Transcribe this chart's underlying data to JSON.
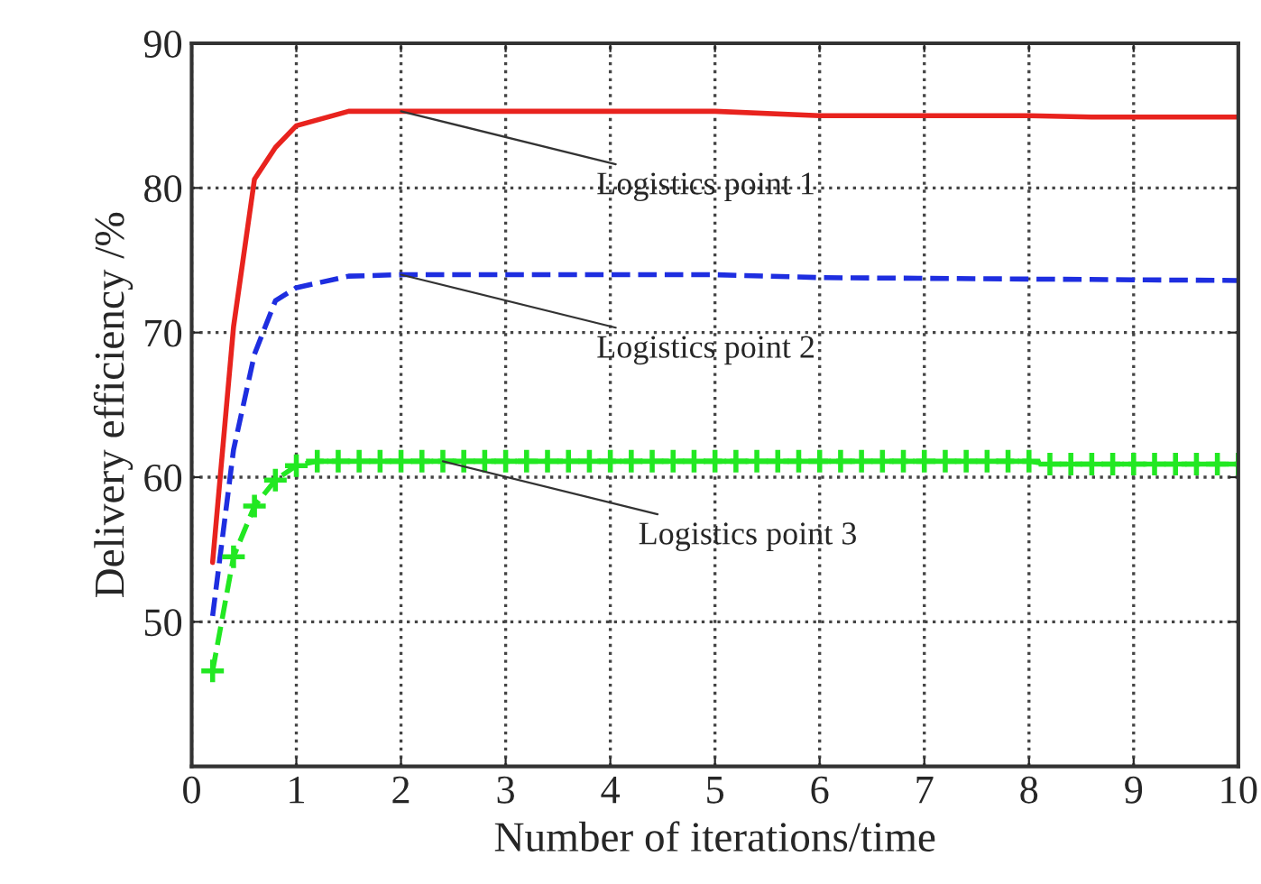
{
  "chart_data": {
    "type": "line",
    "xlabel": "Number of iterations/time",
    "ylabel": "Delivery efficiency /%",
    "xlim": [
      0,
      10
    ],
    "xticks": [
      0,
      1,
      2,
      3,
      4,
      5,
      6,
      7,
      8,
      9,
      10
    ],
    "ylim": [
      40,
      90
    ],
    "yticks": [
      50,
      60,
      70,
      80,
      90
    ],
    "grid": true,
    "series": [
      {
        "name": "Logistics point 1",
        "color": "#e8231e",
        "line_style": "solid",
        "marker": "none",
        "x": [
          0.2,
          0.4,
          0.6,
          0.8,
          1.0,
          1.5,
          2,
          5,
          6,
          8,
          8.6,
          10
        ],
        "values": [
          54.1,
          70.4,
          80.6,
          82.8,
          84.3,
          85.3,
          85.3,
          85.3,
          85.0,
          85.0,
          84.9,
          84.9
        ]
      },
      {
        "name": "Logistics point 2",
        "color": "#1e2ee0",
        "line_style": "dashed",
        "marker": "none",
        "x": [
          0.2,
          0.4,
          0.6,
          0.8,
          1.0,
          1.5,
          2,
          5,
          6,
          10
        ],
        "values": [
          50.4,
          61.9,
          68.5,
          72.2,
          73.1,
          73.9,
          74.0,
          74.0,
          73.8,
          73.6
        ]
      },
      {
        "name": "Logistics point 3",
        "color": "#22e822",
        "line_style": "dashed",
        "marker": "cross",
        "x": [
          0.2,
          0.4,
          0.6,
          0.8,
          1.0,
          1.2,
          1.4,
          1.6,
          1.8,
          2.0,
          2.2,
          2.4,
          2.6,
          2.8,
          3.0,
          3.2,
          3.4,
          3.6,
          3.8,
          4.0,
          4.2,
          4.4,
          4.6,
          4.8,
          5.0,
          5.2,
          5.4,
          5.6,
          5.8,
          6.0,
          6.2,
          6.4,
          6.6,
          6.8,
          7.0,
          7.2,
          7.4,
          7.6,
          7.8,
          8.0,
          8.2,
          8.4,
          8.6,
          8.8,
          9.0,
          9.2,
          9.4,
          9.6,
          9.8,
          10.0
        ],
        "values": [
          46.6,
          54.5,
          58.0,
          59.8,
          60.8,
          61.1,
          61.1,
          61.1,
          61.1,
          61.1,
          61.1,
          61.1,
          61.1,
          61.1,
          61.1,
          61.1,
          61.1,
          61.1,
          61.1,
          61.1,
          61.1,
          61.1,
          61.1,
          61.1,
          61.1,
          61.1,
          61.1,
          61.1,
          61.1,
          61.1,
          61.1,
          61.1,
          61.1,
          61.1,
          61.1,
          61.1,
          61.1,
          61.1,
          61.1,
          61.1,
          60.9,
          60.9,
          60.9,
          60.9,
          60.9,
          60.9,
          60.9,
          60.9,
          60.9,
          60.9
        ]
      }
    ]
  }
}
